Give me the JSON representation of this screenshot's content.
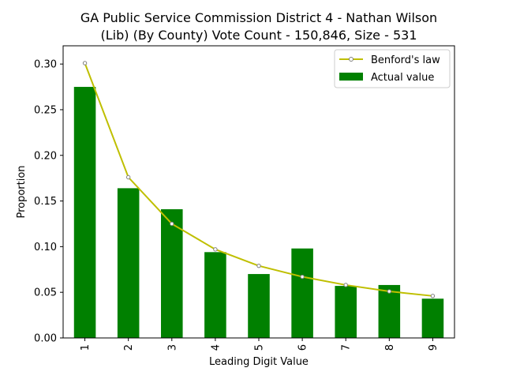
{
  "chart_data": {
    "type": "bar",
    "title_lines": [
      "GA Public Service Commission District 4 - Nathan Wilson",
      "(Lib) (By County) Vote Count - 150,846, Size - 531"
    ],
    "xlabel": "Leading Digit Value",
    "ylabel": "Proportion",
    "categories": [
      "1",
      "2",
      "3",
      "4",
      "5",
      "6",
      "7",
      "8",
      "9"
    ],
    "ylim": [
      0,
      0.32
    ],
    "yticks": [
      "0.00",
      "0.05",
      "0.10",
      "0.15",
      "0.20",
      "0.25",
      "0.30"
    ],
    "grid": false,
    "legend_position": "top-right",
    "series": [
      {
        "name": "Actual value",
        "type": "bar",
        "color": "#008000",
        "values": [
          0.275,
          0.164,
          0.141,
          0.094,
          0.07,
          0.098,
          0.057,
          0.058,
          0.043
        ]
      },
      {
        "name": "Benford's law",
        "type": "line",
        "color": "#bfbf00",
        "marker_color": "#808080",
        "values": [
          0.301,
          0.176,
          0.125,
          0.097,
          0.079,
          0.067,
          0.058,
          0.051,
          0.046
        ]
      }
    ]
  }
}
